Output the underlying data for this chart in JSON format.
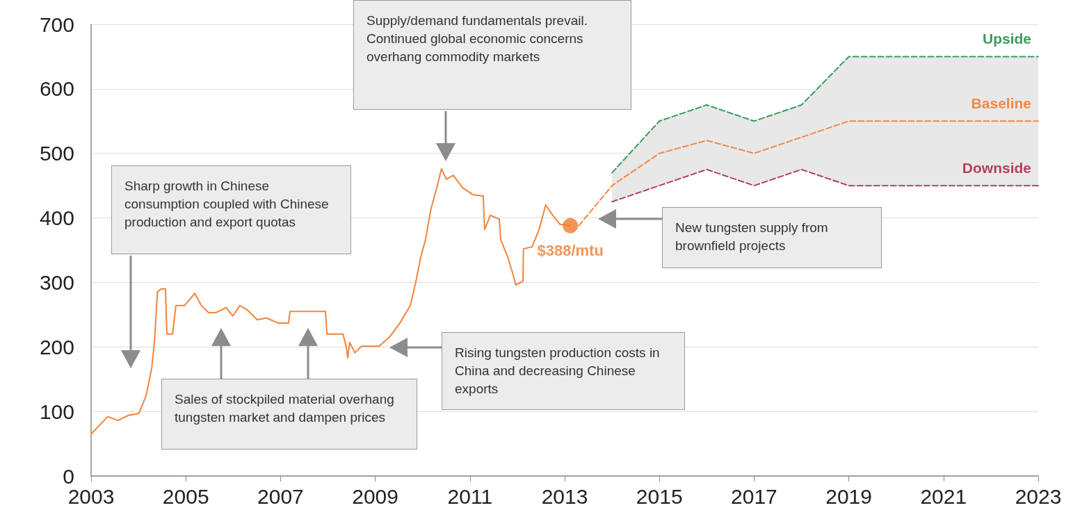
{
  "chart_data": {
    "type": "line",
    "xlim": [
      2003,
      2023
    ],
    "xticks": [
      2003,
      2005,
      2007,
      2009,
      2011,
      2013,
      2015,
      2017,
      2019,
      2021,
      2023
    ],
    "ylim": [
      0,
      700
    ],
    "yticks": [
      0,
      100,
      200,
      300,
      400,
      500,
      600,
      700
    ],
    "grid": "y",
    "legend": false,
    "marker": "none",
    "line_style": "solid",
    "series": [
      {
        "type": "line",
        "color": "#f0843c",
        "x": [
          2003.0,
          2003.35,
          2003.57,
          2003.79,
          2004.01,
          2004.16,
          2004.28,
          2004.34,
          2004.4,
          2004.48,
          2004.57,
          2004.6,
          2004.72,
          2004.79,
          2004.97,
          2005.1,
          2005.19,
          2005.33,
          2005.48,
          2005.63,
          2005.85,
          2005.99,
          2006.14,
          2006.29,
          2006.51,
          2006.7,
          2006.95,
          2007.17,
          2007.2,
          2007.68,
          2007.95,
          2007.98,
          2008.32,
          2008.39,
          2008.42,
          2008.46,
          2008.57,
          2008.71,
          2009.08,
          2009.3,
          2009.52,
          2009.74,
          2009.86,
          2009.96,
          2010.06,
          2010.18,
          2010.3,
          2010.4,
          2010.5,
          2010.65,
          2010.84,
          2011.06,
          2011.28,
          2011.31,
          2011.43,
          2011.62,
          2011.65,
          2011.8,
          2011.91,
          2011.97,
          2012.12,
          2012.13,
          2012.31,
          2012.46,
          2012.6,
          2012.75,
          2012.9,
          2013.12
        ],
        "values": [
          65,
          92,
          86,
          94,
          97,
          124,
          167,
          210,
          285,
          290,
          290,
          220,
          220,
          264,
          264,
          275,
          283,
          264,
          253,
          253,
          261,
          248,
          264,
          258,
          242,
          245,
          237,
          237,
          255,
          255,
          255,
          220,
          220,
          199,
          183,
          207,
          191,
          201,
          201,
          215,
          237,
          264,
          302,
          339,
          366,
          415,
          447,
          476,
          460,
          466,
          447,
          436,
          434,
          382,
          404,
          398,
          366,
          339,
          312,
          296,
          302,
          352,
          355,
          382,
          420,
          404,
          390,
          388
        ]
      },
      {
        "type": "scatter",
        "color": "#f07a2e",
        "marker": "circle",
        "x": [
          2013.12
        ],
        "values": [
          388
        ],
        "value_labels": [
          "$388/mtu"
        ]
      },
      {
        "name": "Upside",
        "color": "#3a9a5e",
        "line_style": "dashed",
        "x": [
          2014,
          2015,
          2016,
          2017,
          2018,
          2019,
          2023
        ],
        "values": [
          470,
          550,
          575,
          550,
          575,
          650,
          650
        ]
      },
      {
        "name": "Baseline",
        "color": "#f0894a",
        "line_style": "dashed",
        "x": [
          2013.3,
          2014,
          2015,
          2016,
          2017,
          2018,
          2019,
          2023
        ],
        "values": [
          388,
          450,
          500,
          520,
          500,
          525,
          550,
          550
        ],
        "lower": [
          null,
          425,
          450,
          475,
          450,
          475,
          450,
          450
        ],
        "upper": [
          null,
          470,
          550,
          575,
          550,
          575,
          650,
          650
        ]
      },
      {
        "name": "Downside",
        "color": "#b5405e",
        "line_style": "dashed",
        "x": [
          2014,
          2015,
          2016,
          2017,
          2018,
          2019,
          2023
        ],
        "values": [
          425,
          450,
          475,
          450,
          475,
          450,
          450
        ]
      }
    ],
    "annotations": [
      "Sharp growth in Chinese consumption coupled with Chinese production and export quotas",
      "Sales of stockpiled material overhang tungsten market and dampen prices",
      "Supply/demand fundamentals prevail. Continued global economic concerns overhang commodity markets",
      "Rising tungsten production costs in China and decreasing Chinese exports",
      "New tungsten supply from brownfield projects"
    ]
  }
}
